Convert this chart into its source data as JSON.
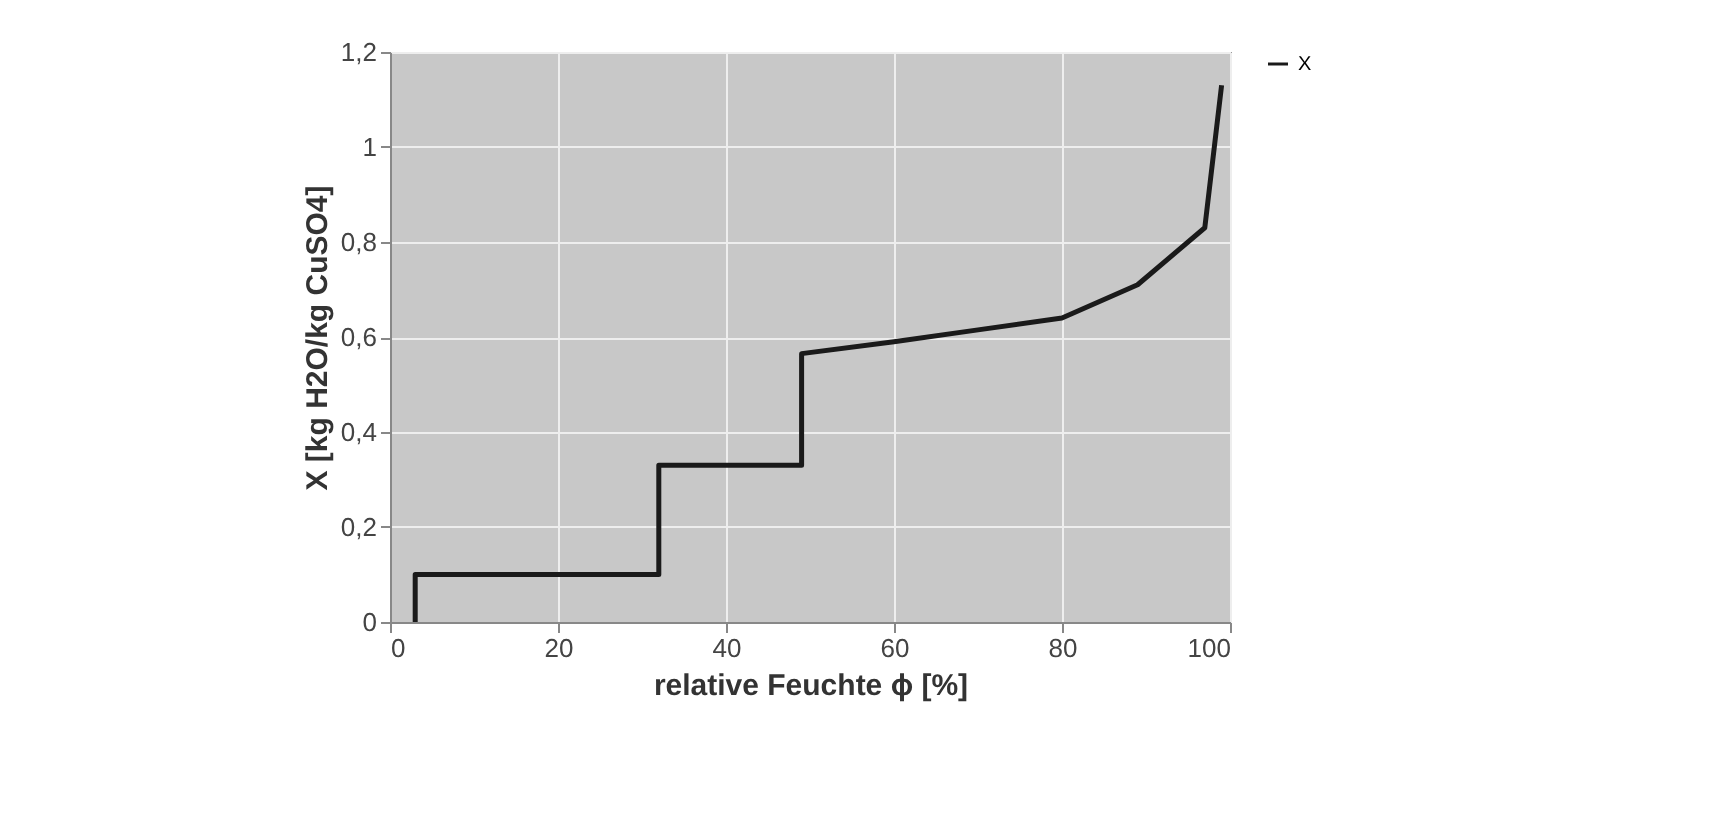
{
  "chart_data": {
    "type": "line",
    "xlabel": "relative Feuchte ϕ  [%]",
    "ylabel": "X [kg H2O/kg CuSO4]",
    "series": [
      {
        "name": "X",
        "color": "#1a1a1a",
        "x": [
          3,
          3,
          32,
          32,
          49,
          49,
          60,
          70,
          80,
          89,
          97,
          99
        ],
        "values": [
          0,
          0.1,
          0.1,
          0.33,
          0.33,
          0.565,
          0.59,
          0.615,
          0.64,
          0.71,
          0.83,
          1.13
        ]
      }
    ],
    "xlim": [
      0,
      100
    ],
    "xticks": [
      0,
      20,
      40,
      60,
      80,
      100
    ],
    "ylim": [
      0,
      1.2
    ],
    "yticks": [
      0,
      {
        "value": 0.2,
        "label": "0,2"
      },
      {
        "value": 0.4,
        "label": "0,4"
      },
      {
        "value": 0.6,
        "label": "0,6"
      },
      {
        "value": 0.8,
        "label": "0,8"
      },
      1,
      {
        "value": 1.2,
        "label": "1,2"
      }
    ],
    "grid": true,
    "legend": "right",
    "marker": "none",
    "line_style": "solid"
  }
}
